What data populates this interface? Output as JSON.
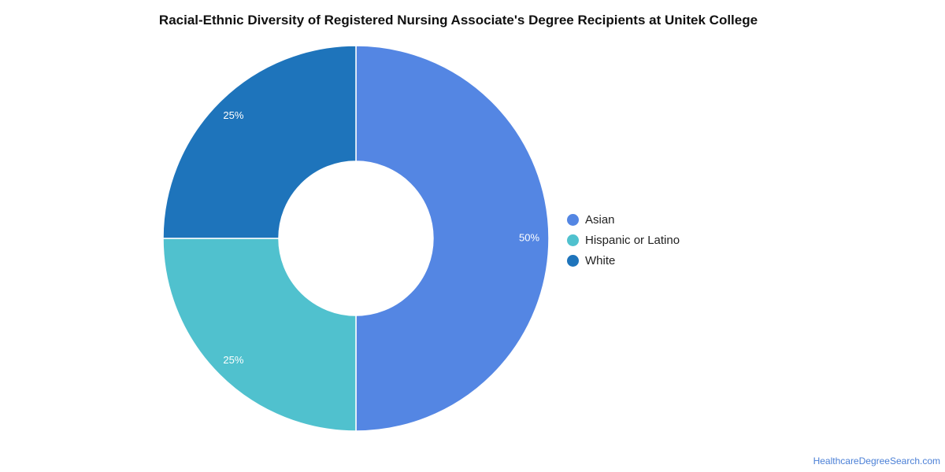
{
  "chart_data": {
    "type": "pie",
    "title": "Racial-Ethnic Diversity of Registered Nursing Associate's Degree Recipients at Unitek College",
    "categories": [
      "Asian",
      "Hispanic or Latino",
      "White"
    ],
    "values": [
      50,
      25,
      25
    ],
    "value_labels": [
      "50%",
      "25%",
      "25%"
    ],
    "colors": [
      "#5486e3",
      "#50c1ce",
      "#1e74bb"
    ],
    "donut": true,
    "legend_position": "right"
  },
  "source": "HealthcareDegreeSearch.com"
}
